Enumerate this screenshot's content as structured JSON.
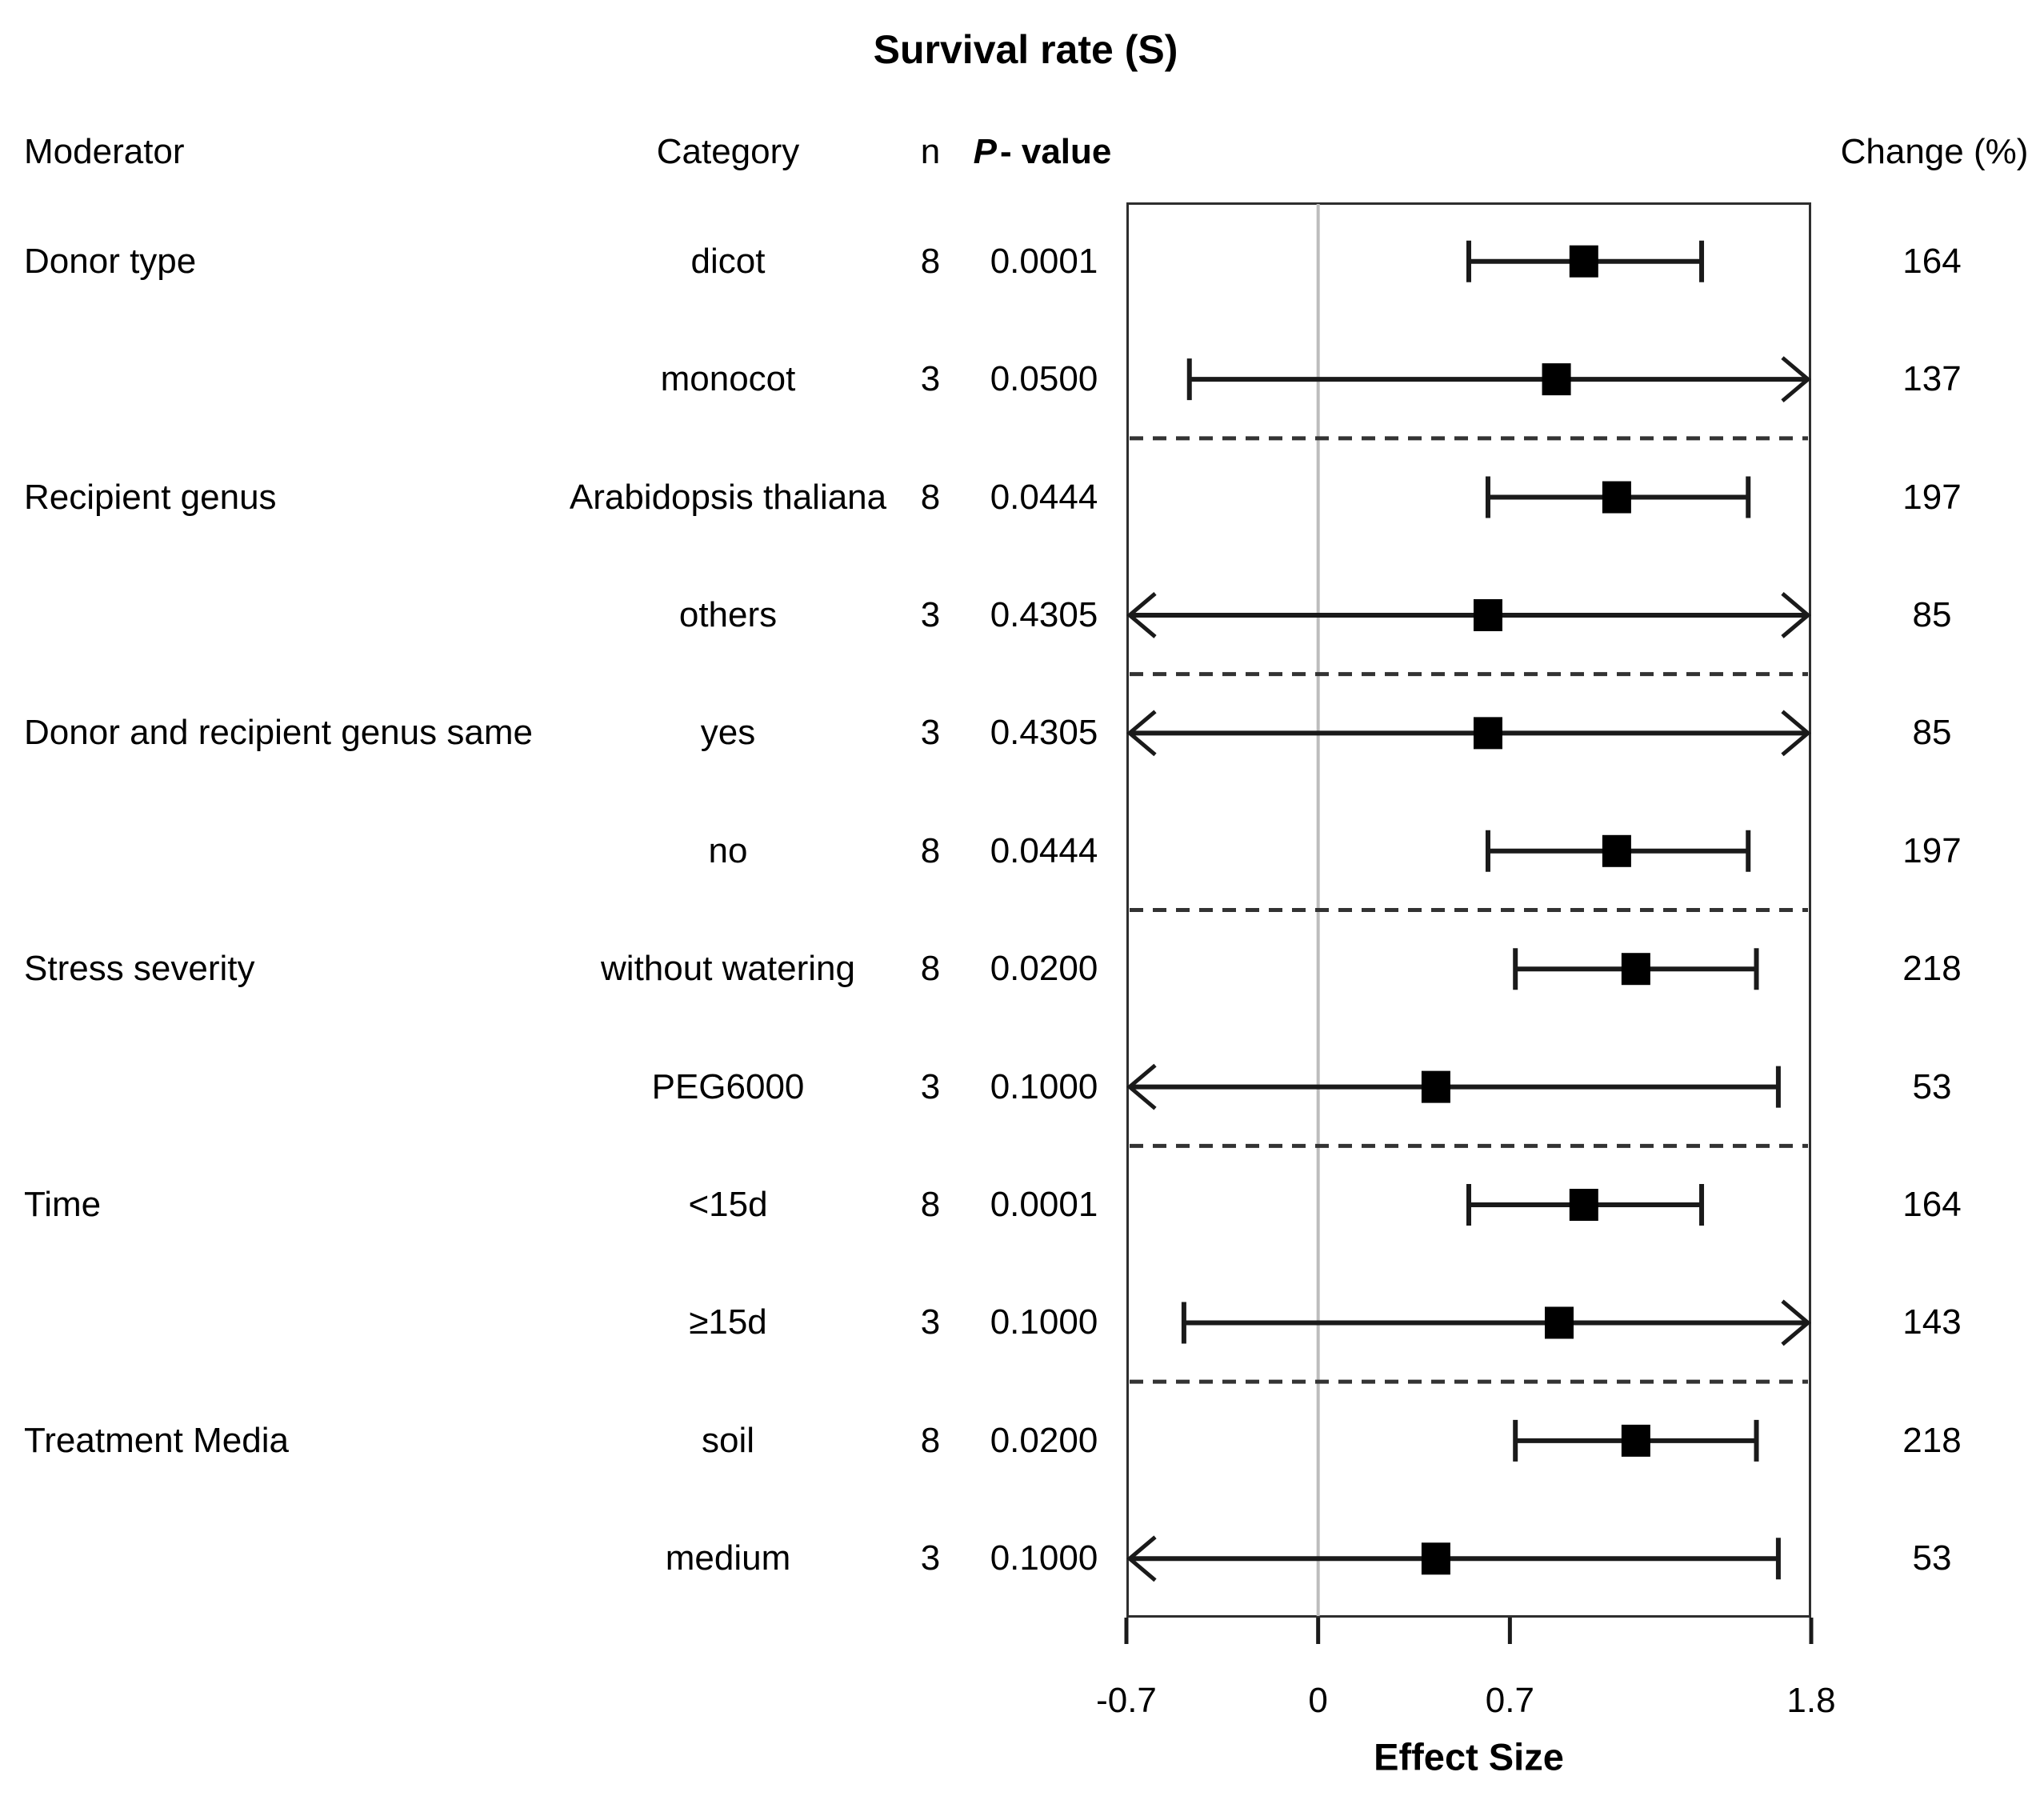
{
  "columns": {
    "moderator": "Moderator",
    "category": "Category",
    "n": "n",
    "p_italic": "P",
    "p_rest": "- value",
    "change": "Change (%)"
  },
  "colors": {
    "text": "#000000",
    "marker": "#000000",
    "ci_line": "#1a1a1a",
    "zero_line": "#bdbdbd",
    "dashed_separator": "#333333",
    "box_border": "#2e2e2e",
    "background": "#ffffff"
  },
  "chart_data": {
    "type": "forest",
    "title": "Survival rate (S)",
    "xlabel": "Effect Size",
    "xlim": [
      -0.7,
      1.8
    ],
    "xticks": [
      -0.7,
      0,
      0.7,
      1.8
    ],
    "xtick_labels": [
      "-0.7",
      "0",
      "0.7",
      "1.8"
    ],
    "zero_line": 0,
    "grid": false,
    "legend": false,
    "rows": [
      {
        "moderator": "Donor type",
        "category": "dicot",
        "n": 8,
        "p": "0.0001",
        "change": 164,
        "effect": 0.97,
        "ci_low": 0.55,
        "ci_high": 1.4,
        "arrow_low": false,
        "arrow_high": false
      },
      {
        "moderator": "",
        "category": "monocot",
        "n": 3,
        "p": "0.0500",
        "change": 137,
        "effect": 0.87,
        "ci_low": -0.47,
        "ci_high": null,
        "arrow_low": false,
        "arrow_high": true
      },
      {
        "moderator": "Recipient genus",
        "category": "Arabidopsis thaliana",
        "n": 8,
        "p": "0.0444",
        "change": 197,
        "effect": 1.09,
        "ci_low": 0.62,
        "ci_high": 1.57,
        "arrow_low": false,
        "arrow_high": false
      },
      {
        "moderator": "",
        "category": "others",
        "n": 3,
        "p": "0.4305",
        "change": 85,
        "effect": 0.62,
        "ci_low": null,
        "ci_high": null,
        "arrow_low": true,
        "arrow_high": true
      },
      {
        "moderator": "Donor and recipient genus same",
        "category": "yes",
        "n": 3,
        "p": "0.4305",
        "change": 85,
        "effect": 0.62,
        "ci_low": null,
        "ci_high": null,
        "arrow_low": true,
        "arrow_high": true
      },
      {
        "moderator": "",
        "category": "no",
        "n": 8,
        "p": "0.0444",
        "change": 197,
        "effect": 1.09,
        "ci_low": 0.62,
        "ci_high": 1.57,
        "arrow_low": false,
        "arrow_high": false
      },
      {
        "moderator": "Stress severity",
        "category": "without watering",
        "n": 8,
        "p": "0.0200",
        "change": 218,
        "effect": 1.16,
        "ci_low": 0.72,
        "ci_high": 1.6,
        "arrow_low": false,
        "arrow_high": false
      },
      {
        "moderator": "",
        "category": "PEG6000",
        "n": 3,
        "p": "0.1000",
        "change": 53,
        "effect": 0.43,
        "ci_low": null,
        "ci_high": 1.68,
        "arrow_low": true,
        "arrow_high": false
      },
      {
        "moderator": "Time",
        "category": "<15d",
        "n": 8,
        "p": "0.0001",
        "change": 164,
        "effect": 0.97,
        "ci_low": 0.55,
        "ci_high": 1.4,
        "arrow_low": false,
        "arrow_high": false
      },
      {
        "moderator": "",
        "category": "≥15d",
        "n": 3,
        "p": "0.1000",
        "change": 143,
        "effect": 0.88,
        "ci_low": -0.49,
        "ci_high": null,
        "arrow_low": false,
        "arrow_high": true
      },
      {
        "moderator": "Treatment Media",
        "category": "soil",
        "n": 8,
        "p": "0.0200",
        "change": 218,
        "effect": 1.16,
        "ci_low": 0.72,
        "ci_high": 1.6,
        "arrow_low": false,
        "arrow_high": false
      },
      {
        "moderator": "",
        "category": "medium",
        "n": 3,
        "p": "0.1000",
        "change": 53,
        "effect": 0.43,
        "ci_low": null,
        "ci_high": 1.68,
        "arrow_low": true,
        "arrow_high": false
      }
    ]
  }
}
